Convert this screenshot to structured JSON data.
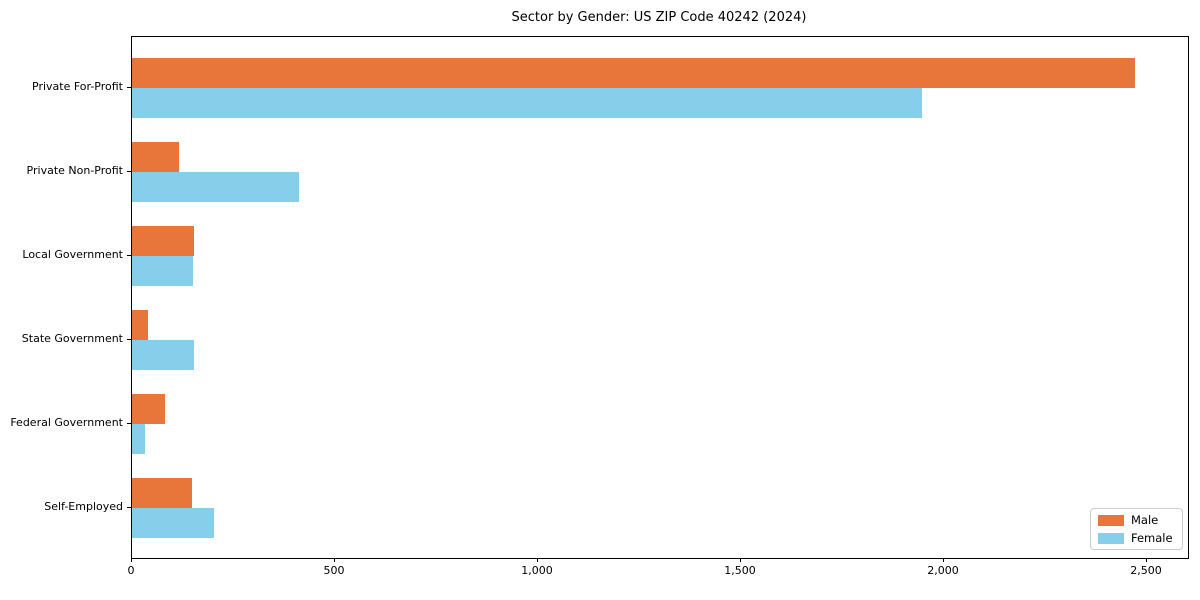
{
  "chart_data": {
    "type": "bar",
    "orientation": "horizontal",
    "title": "Sector by Gender: US ZIP Code 40242 (2024)",
    "categories": [
      "Private For-Profit",
      "Private Non-Profit",
      "Local Government",
      "State Government",
      "Federal Government",
      "Self-Employed"
    ],
    "series": [
      {
        "name": "Male",
        "color": "#e8763b",
        "values": [
          2470,
          115,
          152,
          40,
          81,
          148
        ]
      },
      {
        "name": "Female",
        "color": "#87ceeb",
        "values": [
          1945,
          410,
          150,
          153,
          32,
          202
        ]
      }
    ],
    "xlabel": "",
    "ylabel": "",
    "xlim": [
      0,
      2600
    ],
    "xticks": [
      0,
      500,
      1000,
      1500,
      2000,
      2500
    ],
    "xtick_labels": [
      "0",
      "500",
      "1,000",
      "1,500",
      "2,000",
      "2,500"
    ],
    "grid": false,
    "legend": {
      "position": "lower right",
      "entries": [
        "Male",
        "Female"
      ]
    }
  }
}
